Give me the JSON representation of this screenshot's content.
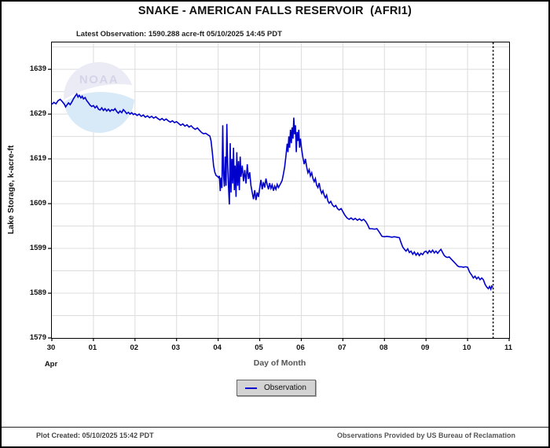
{
  "header": {
    "title": "SNAKE - AMERICAN FALLS RESERVOIR  (AFRI1)",
    "subtitle": "Latest Observation: 1590.288 acre-ft 05/10/2025 14:45 PDT"
  },
  "axes": {
    "y_label": "Lake Storage, k-acre-ft",
    "x_label": "Day of Month",
    "month_label": "Apr",
    "x_ticks": [
      "30",
      "01",
      "02",
      "03",
      "04",
      "05",
      "06",
      "07",
      "08",
      "09",
      "10",
      "11"
    ],
    "y_ticks": [
      "1639",
      "1629",
      "1619",
      "1609",
      "1599",
      "1589",
      "1579"
    ]
  },
  "legend": {
    "label": "Observation"
  },
  "footer": {
    "left": "Plot Created: 05/10/2025 15:42 PDT",
    "right": "Observations Provided by US Bureau of Reclamation"
  },
  "watermark": {
    "text": "NOAA"
  },
  "colors": {
    "line": "#0000cc",
    "grid": "#dcdcdc",
    "axis": "#000000",
    "latest_marker": "#000000"
  },
  "chart_data": {
    "type": "line",
    "title": "SNAKE - AMERICAN FALLS RESERVOIR  (AFRI1)",
    "xlabel": "Day of Month",
    "ylabel": "Lake Storage, k-acre-ft",
    "x_unit": "days since Apr 30 00:00",
    "xlim": [
      0,
      11
    ],
    "ylim": [
      1579,
      1645
    ],
    "grid": {
      "x_step_days": 1,
      "y_step": 5
    },
    "x_tick_days": [
      0,
      1,
      2,
      3,
      4,
      5,
      6,
      7,
      8,
      9,
      10,
      11
    ],
    "x_tick_labels": [
      "30",
      "01",
      "02",
      "03",
      "04",
      "05",
      "06",
      "07",
      "08",
      "09",
      "10",
      "11"
    ],
    "y_tick_values": [
      1579,
      1589,
      1599,
      1609,
      1619,
      1629,
      1639
    ],
    "latest_observation": {
      "value_acre_ft": "1590.288",
      "time": "05/10/2025 14:45 PDT",
      "day_x": 10.615
    },
    "series": [
      {
        "name": "Observation",
        "color": "#0000cc",
        "points": [
          [
            0.0,
            1631.2
          ],
          [
            0.05,
            1631.6
          ],
          [
            0.1,
            1631.3
          ],
          [
            0.15,
            1632.0
          ],
          [
            0.2,
            1632.3
          ],
          [
            0.25,
            1631.8
          ],
          [
            0.3,
            1631.2
          ],
          [
            0.33,
            1630.6
          ],
          [
            0.36,
            1631.0
          ],
          [
            0.4,
            1631.5
          ],
          [
            0.44,
            1631.1
          ],
          [
            0.48,
            1631.7
          ],
          [
            0.52,
            1632.4
          ],
          [
            0.56,
            1633.0
          ],
          [
            0.6,
            1633.5
          ],
          [
            0.63,
            1632.8
          ],
          [
            0.66,
            1633.2
          ],
          [
            0.7,
            1632.6
          ],
          [
            0.73,
            1633.0
          ],
          [
            0.76,
            1632.4
          ],
          [
            0.8,
            1632.7
          ],
          [
            0.84,
            1632.0
          ],
          [
            0.88,
            1631.5
          ],
          [
            0.92,
            1631.0
          ],
          [
            0.96,
            1630.7
          ],
          [
            1.0,
            1630.9
          ],
          [
            1.04,
            1630.4
          ],
          [
            1.08,
            1630.8
          ],
          [
            1.12,
            1630.1
          ],
          [
            1.16,
            1629.9
          ],
          [
            1.2,
            1630.4
          ],
          [
            1.24,
            1629.8
          ],
          [
            1.28,
            1630.2
          ],
          [
            1.32,
            1629.7
          ],
          [
            1.36,
            1630.1
          ],
          [
            1.4,
            1629.6
          ],
          [
            1.44,
            1630.0
          ],
          [
            1.48,
            1629.8
          ],
          [
            1.52,
            1630.2
          ],
          [
            1.56,
            1629.6
          ],
          [
            1.6,
            1629.2
          ],
          [
            1.64,
            1629.7
          ],
          [
            1.68,
            1629.3
          ],
          [
            1.72,
            1630.0
          ],
          [
            1.76,
            1629.6
          ],
          [
            1.8,
            1629.1
          ],
          [
            1.84,
            1629.4
          ],
          [
            1.88,
            1629.0
          ],
          [
            1.92,
            1629.3
          ],
          [
            1.96,
            1628.9
          ],
          [
            2.0,
            1629.1
          ],
          [
            2.05,
            1628.7
          ],
          [
            2.1,
            1629.0
          ],
          [
            2.15,
            1628.5
          ],
          [
            2.2,
            1628.8
          ],
          [
            2.25,
            1628.3
          ],
          [
            2.3,
            1628.6
          ],
          [
            2.35,
            1628.2
          ],
          [
            2.4,
            1628.5
          ],
          [
            2.45,
            1628.1
          ],
          [
            2.5,
            1628.4
          ],
          [
            2.55,
            1628.0
          ],
          [
            2.6,
            1627.7
          ],
          [
            2.65,
            1628.0
          ],
          [
            2.7,
            1627.6
          ],
          [
            2.75,
            1627.9
          ],
          [
            2.8,
            1627.5
          ],
          [
            2.85,
            1627.2
          ],
          [
            2.9,
            1627.5
          ],
          [
            2.95,
            1627.1
          ],
          [
            3.0,
            1627.3
          ],
          [
            3.05,
            1626.9
          ],
          [
            3.1,
            1626.5
          ],
          [
            3.15,
            1626.8
          ],
          [
            3.2,
            1626.3
          ],
          [
            3.25,
            1626.6
          ],
          [
            3.3,
            1626.1
          ],
          [
            3.35,
            1626.4
          ],
          [
            3.4,
            1625.9
          ],
          [
            3.45,
            1625.6
          ],
          [
            3.5,
            1625.9
          ],
          [
            3.55,
            1625.4
          ],
          [
            3.6,
            1624.9
          ],
          [
            3.65,
            1624.6
          ],
          [
            3.7,
            1624.7
          ],
          [
            3.75,
            1624.4
          ],
          [
            3.8,
            1624.1
          ],
          [
            3.83,
            1623.0
          ],
          [
            3.86,
            1620.5
          ],
          [
            3.89,
            1617.5
          ],
          [
            3.92,
            1616.0
          ],
          [
            3.95,
            1615.3
          ],
          [
            3.98,
            1615.1
          ],
          [
            4.01,
            1614.8
          ],
          [
            4.03,
            1615.2
          ],
          [
            4.05,
            1611.8
          ],
          [
            4.07,
            1614.8
          ],
          [
            4.09,
            1612.5
          ],
          [
            4.11,
            1626.5
          ],
          [
            4.13,
            1615.5
          ],
          [
            4.15,
            1612.8
          ],
          [
            4.17,
            1619.5
          ],
          [
            4.19,
            1613.0
          ],
          [
            4.21,
            1626.8
          ],
          [
            4.23,
            1617.5
          ],
          [
            4.25,
            1612.5
          ],
          [
            4.27,
            1608.8
          ],
          [
            4.29,
            1622.5
          ],
          [
            4.31,
            1611.5
          ],
          [
            4.33,
            1619.0
          ],
          [
            4.35,
            1613.5
          ],
          [
            4.37,
            1621.5
          ],
          [
            4.39,
            1612.0
          ],
          [
            4.41,
            1617.5
          ],
          [
            4.43,
            1610.5
          ],
          [
            4.45,
            1620.5
          ],
          [
            4.47,
            1613.0
          ],
          [
            4.49,
            1618.5
          ],
          [
            4.51,
            1612.0
          ],
          [
            4.53,
            1619.5
          ],
          [
            4.55,
            1615.0
          ],
          [
            4.58,
            1617.5
          ],
          [
            4.61,
            1614.0
          ],
          [
            4.64,
            1616.5
          ],
          [
            4.67,
            1613.5
          ],
          [
            4.7,
            1617.8
          ],
          [
            4.73,
            1614.5
          ],
          [
            4.76,
            1616.0
          ],
          [
            4.79,
            1613.0
          ],
          [
            4.82,
            1611.5
          ],
          [
            4.85,
            1610.0
          ],
          [
            4.88,
            1612.0
          ],
          [
            4.91,
            1609.8
          ],
          [
            4.94,
            1611.5
          ],
          [
            4.97,
            1610.5
          ],
          [
            5.0,
            1612.5
          ],
          [
            5.03,
            1614.3
          ],
          [
            5.06,
            1612.2
          ],
          [
            5.09,
            1613.8
          ],
          [
            5.12,
            1612.6
          ],
          [
            5.15,
            1614.6
          ],
          [
            5.18,
            1613.2
          ],
          [
            5.21,
            1612.2
          ],
          [
            5.24,
            1613.6
          ],
          [
            5.27,
            1612.4
          ],
          [
            5.3,
            1613.2
          ],
          [
            5.33,
            1611.9
          ],
          [
            5.36,
            1612.9
          ],
          [
            5.39,
            1612.2
          ],
          [
            5.42,
            1613.3
          ],
          [
            5.45,
            1612.6
          ],
          [
            5.48,
            1613.1
          ],
          [
            5.51,
            1613.6
          ],
          [
            5.54,
            1614.2
          ],
          [
            5.57,
            1615.6
          ],
          [
            5.6,
            1617.2
          ],
          [
            5.63,
            1619.6
          ],
          [
            5.66,
            1622.4
          ],
          [
            5.68,
            1620.5
          ],
          [
            5.7,
            1624.0
          ],
          [
            5.72,
            1621.5
          ],
          [
            5.74,
            1625.5
          ],
          [
            5.76,
            1622.5
          ],
          [
            5.78,
            1626.0
          ],
          [
            5.8,
            1623.5
          ],
          [
            5.82,
            1628.2
          ],
          [
            5.84,
            1624.5
          ],
          [
            5.86,
            1626.5
          ],
          [
            5.88,
            1620.5
          ],
          [
            5.9,
            1625.0
          ],
          [
            5.92,
            1623.0
          ],
          [
            5.94,
            1625.5
          ],
          [
            5.96,
            1621.5
          ],
          [
            5.98,
            1623.5
          ],
          [
            6.01,
            1621.0
          ],
          [
            6.04,
            1619.2
          ],
          [
            6.07,
            1617.8
          ],
          [
            6.1,
            1619.0
          ],
          [
            6.13,
            1617.2
          ],
          [
            6.16,
            1615.9
          ],
          [
            6.19,
            1616.6
          ],
          [
            6.22,
            1615.2
          ],
          [
            6.25,
            1615.9
          ],
          [
            6.28,
            1614.6
          ],
          [
            6.31,
            1613.9
          ],
          [
            6.34,
            1614.6
          ],
          [
            6.37,
            1613.1
          ],
          [
            6.4,
            1612.6
          ],
          [
            6.43,
            1613.6
          ],
          [
            6.46,
            1612.1
          ],
          [
            6.49,
            1611.3
          ],
          [
            6.52,
            1611.9
          ],
          [
            6.55,
            1610.9
          ],
          [
            6.58,
            1610.3
          ],
          [
            6.61,
            1610.9
          ],
          [
            6.64,
            1609.6
          ],
          [
            6.67,
            1609.1
          ],
          [
            6.71,
            1609.5
          ],
          [
            6.75,
            1608.7
          ],
          [
            6.79,
            1608.3
          ],
          [
            6.83,
            1608.6
          ],
          [
            6.87,
            1607.9
          ],
          [
            6.91,
            1607.6
          ],
          [
            6.96,
            1607.9
          ],
          [
            7.0,
            1607.2
          ],
          [
            7.05,
            1606.4
          ],
          [
            7.1,
            1605.8
          ],
          [
            7.15,
            1605.5
          ],
          [
            7.2,
            1605.8
          ],
          [
            7.25,
            1605.4
          ],
          [
            7.3,
            1605.7
          ],
          [
            7.35,
            1605.3
          ],
          [
            7.4,
            1605.6
          ],
          [
            7.45,
            1605.2
          ],
          [
            7.5,
            1605.5
          ],
          [
            7.55,
            1605.0
          ],
          [
            7.6,
            1604.2
          ],
          [
            7.64,
            1603.4
          ],
          [
            7.7,
            1603.4
          ],
          [
            7.76,
            1603.3
          ],
          [
            7.82,
            1603.4
          ],
          [
            7.88,
            1602.6
          ],
          [
            7.94,
            1601.7
          ],
          [
            8.0,
            1601.6
          ],
          [
            8.06,
            1601.7
          ],
          [
            8.12,
            1601.6
          ],
          [
            8.18,
            1601.5
          ],
          [
            8.24,
            1601.6
          ],
          [
            8.3,
            1601.5
          ],
          [
            8.36,
            1601.4
          ],
          [
            8.4,
            1600.3
          ],
          [
            8.44,
            1599.3
          ],
          [
            8.48,
            1598.8
          ],
          [
            8.52,
            1598.4
          ],
          [
            8.56,
            1598.9
          ],
          [
            8.6,
            1598.1
          ],
          [
            8.64,
            1598.4
          ],
          [
            8.68,
            1597.7
          ],
          [
            8.72,
            1598.2
          ],
          [
            8.76,
            1597.5
          ],
          [
            8.8,
            1598.0
          ],
          [
            8.84,
            1597.4
          ],
          [
            8.88,
            1597.9
          ],
          [
            8.92,
            1597.6
          ],
          [
            8.96,
            1598.2
          ],
          [
            9.0,
            1598.4
          ],
          [
            9.04,
            1597.9
          ],
          [
            9.08,
            1598.5
          ],
          [
            9.12,
            1598.1
          ],
          [
            9.16,
            1598.6
          ],
          [
            9.2,
            1598.0
          ],
          [
            9.24,
            1598.4
          ],
          [
            9.28,
            1597.9
          ],
          [
            9.32,
            1598.4
          ],
          [
            9.36,
            1598.8
          ],
          [
            9.4,
            1598.1
          ],
          [
            9.44,
            1597.4
          ],
          [
            9.48,
            1597.1
          ],
          [
            9.52,
            1597.0
          ],
          [
            9.56,
            1597.1
          ],
          [
            9.6,
            1596.7
          ],
          [
            9.64,
            1596.3
          ],
          [
            9.68,
            1595.9
          ],
          [
            9.72,
            1595.5
          ],
          [
            9.76,
            1595.1
          ],
          [
            9.8,
            1594.9
          ],
          [
            9.85,
            1594.9
          ],
          [
            9.9,
            1594.8
          ],
          [
            9.95,
            1594.9
          ],
          [
            10.0,
            1594.8
          ],
          [
            10.05,
            1593.7
          ],
          [
            10.1,
            1593.0
          ],
          [
            10.14,
            1592.4
          ],
          [
            10.18,
            1592.8
          ],
          [
            10.22,
            1592.2
          ],
          [
            10.26,
            1592.6
          ],
          [
            10.3,
            1592.0
          ],
          [
            10.34,
            1592.4
          ],
          [
            10.38,
            1592.0
          ],
          [
            10.42,
            1591.0
          ],
          [
            10.46,
            1590.4
          ],
          [
            10.5,
            1590.0
          ],
          [
            10.53,
            1590.5
          ],
          [
            10.56,
            1589.9
          ],
          [
            10.58,
            1590.6
          ],
          [
            10.61,
            1590.3
          ]
        ]
      }
    ]
  }
}
